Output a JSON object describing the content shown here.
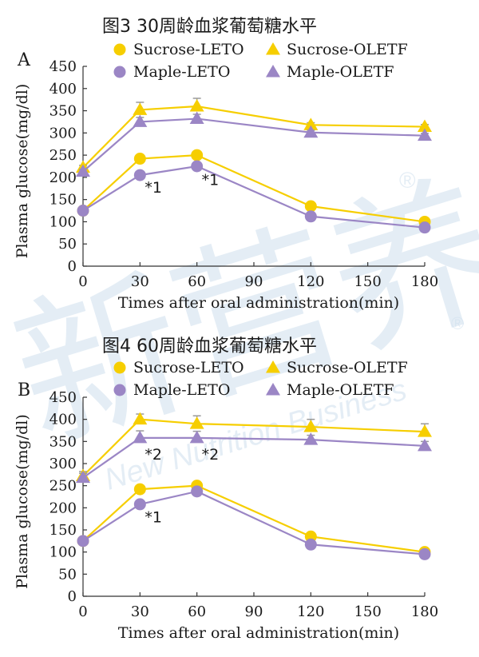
{
  "colors": {
    "yellow": "#f6ce00",
    "purple": "#9b86c5",
    "axis": "#333333",
    "error_bar": "#9a9a9a",
    "watermark": "#cfe0ee"
  },
  "watermark": {
    "main": "新营养",
    "sub": "New Nutrition Business",
    "reg": "®"
  },
  "chart_data": [
    {
      "type": "line",
      "panel": "A",
      "title": "图3 30周龄血浆葡萄糖水平",
      "xlabel": "Times after oral administration(min)",
      "ylabel": "Plasma glucose(mg/dl)",
      "x": [
        0,
        30,
        60,
        120,
        180
      ],
      "xlim": [
        0,
        180
      ],
      "ylim": [
        0,
        450
      ],
      "xticks": [
        "0",
        "30",
        "60",
        "90",
        "120",
        "150",
        "180"
      ],
      "yticks": [
        "0",
        "50",
        "100",
        "150",
        "200",
        "250",
        "300",
        "350",
        "400",
        "450"
      ],
      "legend": {
        "position": "top",
        "columns": 2
      },
      "series": [
        {
          "name": "Sucrose-LETO",
          "marker": "circle",
          "color": "yellow",
          "values": [
            125,
            242,
            250,
            135,
            100
          ],
          "errors": [
            0,
            5,
            5,
            5,
            5
          ]
        },
        {
          "name": "Sucrose-OLETF",
          "marker": "triangle",
          "color": "yellow",
          "values": [
            222,
            352,
            360,
            318,
            314
          ],
          "errors": [
            5,
            17,
            18,
            5,
            5
          ]
        },
        {
          "name": "Maple-LETO",
          "marker": "circle",
          "color": "purple",
          "values": [
            125,
            205,
            225,
            112,
            87
          ],
          "errors": [
            0,
            5,
            5,
            5,
            5
          ]
        },
        {
          "name": "Maple-OLETF",
          "marker": "triangle",
          "color": "purple",
          "values": [
            213,
            325,
            332,
            301,
            294
          ],
          "errors": [
            5,
            10,
            10,
            5,
            5
          ]
        }
      ],
      "annotations": [
        {
          "text": "*1",
          "x": 30,
          "y": 178
        },
        {
          "text": "*1",
          "x": 60,
          "y": 195
        }
      ]
    },
    {
      "type": "line",
      "panel": "B",
      "title": "图4 60周龄血浆葡萄糖水平",
      "xlabel": "Times after oral administration(min)",
      "ylabel": "Plasma glucose(mg/dl)",
      "x": [
        0,
        30,
        60,
        120,
        180
      ],
      "xlim": [
        0,
        180
      ],
      "ylim": [
        0,
        450
      ],
      "xticks": [
        "0",
        "30",
        "60",
        "90",
        "120",
        "150",
        "180"
      ],
      "yticks": [
        "0",
        "50",
        "100",
        "150",
        "200",
        "250",
        "300",
        "350",
        "400",
        "450"
      ],
      "legend": {
        "position": "top",
        "columns": 2
      },
      "series": [
        {
          "name": "Sucrose-LETO",
          "marker": "circle",
          "color": "yellow",
          "values": [
            125,
            242,
            250,
            135,
            100
          ],
          "errors": [
            0,
            5,
            5,
            5,
            5
          ]
        },
        {
          "name": "Sucrose-OLETF",
          "marker": "triangle",
          "color": "yellow",
          "values": [
            272,
            400,
            390,
            383,
            372
          ],
          "errors": [
            10,
            12,
            18,
            17,
            18
          ]
        },
        {
          "name": "Maple-LETO",
          "marker": "circle",
          "color": "purple",
          "values": [
            125,
            208,
            237,
            117,
            95
          ],
          "errors": [
            0,
            5,
            5,
            5,
            5
          ]
        },
        {
          "name": "Maple-OLETF",
          "marker": "triangle",
          "color": "purple",
          "values": [
            268,
            358,
            358,
            354,
            340
          ],
          "errors": [
            10,
            16,
            15,
            10,
            10
          ]
        }
      ],
      "annotations": [
        {
          "text": "*2",
          "x": 30,
          "y": 322
        },
        {
          "text": "*2",
          "x": 60,
          "y": 322
        },
        {
          "text": "*1",
          "x": 30,
          "y": 180
        }
      ]
    }
  ]
}
